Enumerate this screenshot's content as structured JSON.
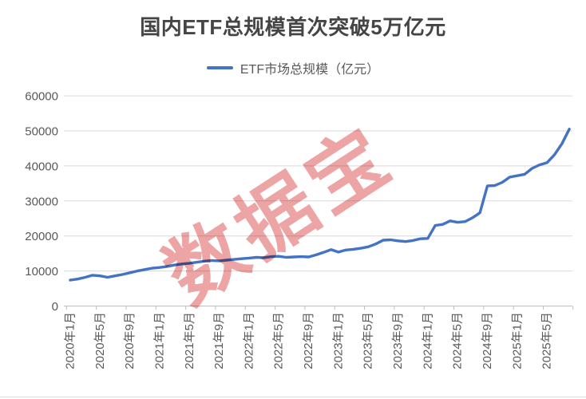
{
  "title": "国内ETF总规模首次突破5万亿元",
  "legend": {
    "label": "ETF市场总规模（亿元）"
  },
  "watermark": {
    "text": "数据宝"
  },
  "colors": {
    "line": "#4472C4",
    "grid": "#D9D9D9",
    "axis": "#BFBFBF",
    "tick_text": "#595959",
    "title_text": "#454545",
    "watermark": "rgba(220,90,90,0.55)"
  },
  "chart_data": {
    "type": "line",
    "title": "国内ETF总规模首次突破5万亿元",
    "ylabel": "",
    "xlabel": "",
    "ylim": [
      0,
      60000
    ],
    "yticks": [
      0,
      10000,
      20000,
      30000,
      40000,
      50000,
      60000
    ],
    "xtick_every": 4,
    "grid": "horizontal",
    "legend_position": "top",
    "x": [
      "2020年1月",
      "2020年2月",
      "2020年3月",
      "2020年4月",
      "2020年5月",
      "2020年6月",
      "2020年7月",
      "2020年8月",
      "2020年9月",
      "2020年10月",
      "2020年11月",
      "2020年12月",
      "2021年1月",
      "2021年2月",
      "2021年3月",
      "2021年4月",
      "2021年5月",
      "2021年6月",
      "2021年7月",
      "2021年8月",
      "2021年9月",
      "2021年10月",
      "2021年11月",
      "2021年12月",
      "2022年1月",
      "2022年2月",
      "2022年3月",
      "2022年4月",
      "2022年5月",
      "2022年6月",
      "2022年7月",
      "2022年8月",
      "2022年9月",
      "2022年10月",
      "2022年11月",
      "2022年12月",
      "2023年1月",
      "2023年2月",
      "2023年3月",
      "2023年4月",
      "2023年5月",
      "2023年6月",
      "2023年7月",
      "2023年8月",
      "2023年9月",
      "2023年10月",
      "2023年11月",
      "2023年12月",
      "2024年1月",
      "2024年2月",
      "2024年3月",
      "2024年4月",
      "2024年5月",
      "2024年6月",
      "2024年7月",
      "2024年8月",
      "2024年9月",
      "2024年10月",
      "2024年11月",
      "2024年12月",
      "2025年1月",
      "2025年2月",
      "2025年3月",
      "2025年4月",
      "2025年5月",
      "2025年6月",
      "2025年7月",
      "2025年8月"
    ],
    "series": [
      {
        "name": "ETF市场总规模（亿元）",
        "values": [
          7400,
          7700,
          8200,
          8800,
          8600,
          8200,
          8600,
          9000,
          9500,
          10000,
          10400,
          10800,
          11000,
          11300,
          11700,
          12000,
          12200,
          12500,
          12800,
          13000,
          12900,
          13100,
          13300,
          13500,
          13700,
          13900,
          13800,
          14100,
          14200,
          13900,
          14000,
          14100,
          14000,
          14600,
          15300,
          16100,
          15400,
          16000,
          16200,
          16500,
          16900,
          17700,
          18800,
          18900,
          18600,
          18400,
          18700,
          19200,
          19300,
          23000,
          23300,
          24300,
          23900,
          24100,
          25200,
          26600,
          34300,
          34400,
          35300,
          36800,
          37200,
          37600,
          39300,
          40300,
          40900,
          43200,
          46300,
          50500
        ]
      }
    ]
  }
}
